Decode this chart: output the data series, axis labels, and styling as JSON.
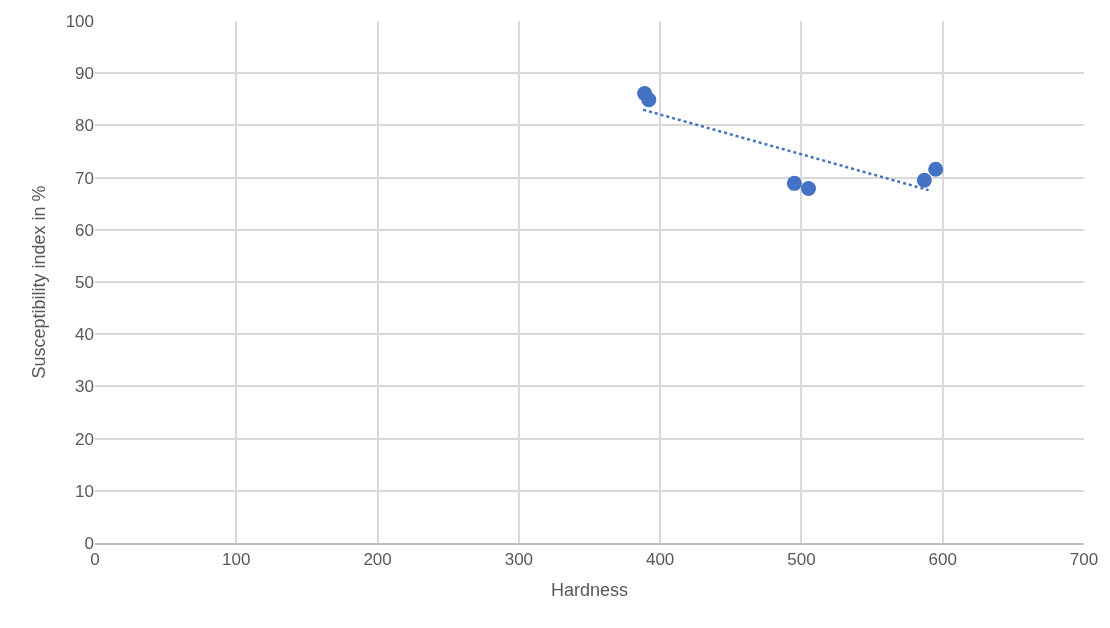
{
  "chart_data": {
    "type": "scatter",
    "xlabel": "Hardness",
    "ylabel": "Susceptibility index in %",
    "xlim": [
      0,
      700
    ],
    "xticks": [
      0,
      100,
      200,
      300,
      400,
      500,
      600,
      700
    ],
    "ylim": [
      0,
      100
    ],
    "yticks": [
      0,
      10,
      20,
      30,
      40,
      50,
      60,
      70,
      80,
      90,
      100
    ],
    "grid": true,
    "series": [
      {
        "color": "#4472c4",
        "marker": "circle",
        "x": [
          389,
          392,
          495,
          505,
          587,
          595
        ],
        "values": [
          86.1,
          84.9,
          68.9,
          67.9,
          69.5,
          71.6
        ]
      },
      {
        "type": "line",
        "color": "#4472c4",
        "line_style": "dotted",
        "x": [
          388,
          590
        ],
        "values": [
          83.0,
          67.6
        ]
      }
    ]
  }
}
